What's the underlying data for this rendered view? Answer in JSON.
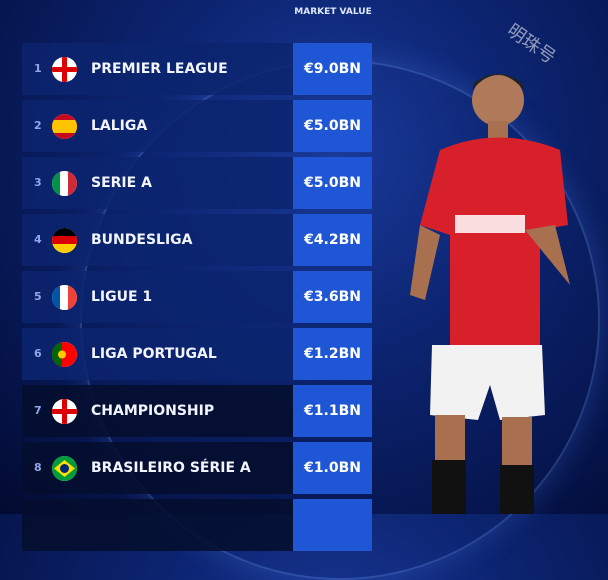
{
  "chart_data": {
    "type": "table",
    "column_header": "MARKET VALUE",
    "rows": [
      {
        "rank": "1",
        "league": "PREMIER LEAGUE",
        "flag": "england",
        "value": "€9.0BN"
      },
      {
        "rank": "2",
        "league": "LALIGA",
        "flag": "spain",
        "value": "€5.0BN"
      },
      {
        "rank": "3",
        "league": "SERIE A",
        "flag": "italy",
        "value": "€5.0BN"
      },
      {
        "rank": "4",
        "league": "BUNDESLIGA",
        "flag": "germany",
        "value": "€4.2BN"
      },
      {
        "rank": "5",
        "league": "LIGUE 1",
        "flag": "france",
        "value": "€3.6BN"
      },
      {
        "rank": "6",
        "league": "LIGA PORTUGAL",
        "flag": "portugal",
        "value": "€1.2BN"
      },
      {
        "rank": "7",
        "league": "CHAMPIONSHIP",
        "flag": "england",
        "value": "€1.1BN"
      },
      {
        "rank": "8",
        "league": "BRASILEIRO SÉRIE A",
        "flag": "brazil",
        "value": "€1.0BN"
      }
    ]
  },
  "watermark": "明珠号",
  "colors": {
    "value_box": "#1e56d6",
    "row": "#0c246e",
    "background": "#0c2470"
  }
}
